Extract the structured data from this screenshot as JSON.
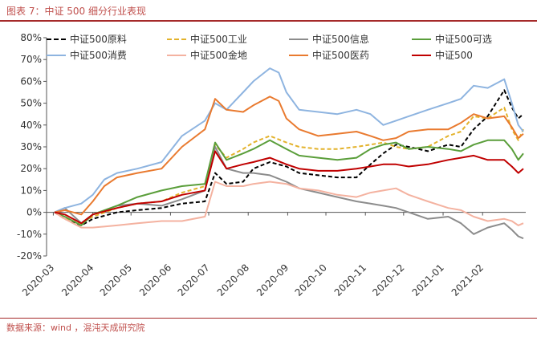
{
  "figure": {
    "title": "图表 7：中证 500 细分行业表现",
    "source": "数据来源：wind ，混沌天成研究院"
  },
  "chart_data": {
    "type": "line",
    "ylim": [
      -20,
      80
    ],
    "yticks": [
      "80%",
      "70%",
      "60%",
      "50%",
      "40%",
      "30%",
      "20%",
      "10%",
      "0%",
      "-10%",
      "-20%"
    ],
    "xticks": [
      "2020-03",
      "2020-04",
      "2020-05",
      "2020-06",
      "2020-07",
      "2020-08",
      "2020-09",
      "2020-10",
      "2020-11",
      "2020-12",
      "2021-01",
      "2021-02"
    ],
    "x_start": "2020-03-02",
    "legend": "top",
    "grid": false,
    "series": [
      {
        "name": "中证500原料",
        "color": "#000000",
        "dash": "5,3",
        "width": 2,
        "points": [
          [
            "2020-03-02",
            0
          ],
          [
            "2020-03-10",
            -3
          ],
          [
            "2020-03-23",
            -6
          ],
          [
            "2020-04-01",
            -3
          ],
          [
            "2020-04-20",
            0
          ],
          [
            "2020-05-06",
            1
          ],
          [
            "2020-05-25",
            2
          ],
          [
            "2020-06-10",
            4
          ],
          [
            "2020-06-28",
            5
          ],
          [
            "2020-07-06",
            18
          ],
          [
            "2020-07-15",
            13
          ],
          [
            "2020-07-28",
            14
          ],
          [
            "2020-08-05",
            20
          ],
          [
            "2020-08-18",
            23
          ],
          [
            "2020-08-31",
            21
          ],
          [
            "2020-09-10",
            18
          ],
          [
            "2020-09-25",
            17
          ],
          [
            "2020-10-10",
            16
          ],
          [
            "2020-10-25",
            16
          ],
          [
            "2020-11-05",
            22
          ],
          [
            "2020-11-15",
            27
          ],
          [
            "2020-11-25",
            31
          ],
          [
            "2020-12-05",
            30
          ],
          [
            "2020-12-20",
            28
          ],
          [
            "2021-01-05",
            31
          ],
          [
            "2021-01-15",
            30
          ],
          [
            "2021-01-25",
            38
          ],
          [
            "2021-02-05",
            44
          ],
          [
            "2021-02-18",
            56
          ],
          [
            "2021-02-24",
            48
          ],
          [
            "2021-03-01",
            43
          ],
          [
            "2021-03-05",
            45
          ]
        ]
      },
      {
        "name": "中证500工业",
        "color": "#e3b22b",
        "dash": "5,3",
        "width": 2,
        "points": [
          [
            "2020-03-02",
            0
          ],
          [
            "2020-03-10",
            -3
          ],
          [
            "2020-03-23",
            -5
          ],
          [
            "2020-04-01",
            -2
          ],
          [
            "2020-04-20",
            2
          ],
          [
            "2020-05-06",
            4
          ],
          [
            "2020-05-25",
            5
          ],
          [
            "2020-06-10",
            9
          ],
          [
            "2020-06-28",
            12
          ],
          [
            "2020-07-06",
            31
          ],
          [
            "2020-07-15",
            25
          ],
          [
            "2020-07-28",
            29
          ],
          [
            "2020-08-05",
            32
          ],
          [
            "2020-08-18",
            35
          ],
          [
            "2020-08-31",
            32
          ],
          [
            "2020-09-10",
            30
          ],
          [
            "2020-09-25",
            29
          ],
          [
            "2020-10-10",
            29
          ],
          [
            "2020-10-25",
            30
          ],
          [
            "2020-11-05",
            31
          ],
          [
            "2020-11-15",
            32
          ],
          [
            "2020-11-25",
            30
          ],
          [
            "2020-12-05",
            29
          ],
          [
            "2020-12-20",
            30
          ],
          [
            "2021-01-05",
            35
          ],
          [
            "2021-01-15",
            37
          ],
          [
            "2021-01-25",
            44
          ],
          [
            "2021-02-05",
            43
          ],
          [
            "2021-02-18",
            48
          ],
          [
            "2021-02-24",
            38
          ],
          [
            "2021-03-01",
            33
          ],
          [
            "2021-03-05",
            38
          ]
        ]
      },
      {
        "name": "中证500信息",
        "color": "#8c8c8c",
        "dash": "",
        "width": 2,
        "points": [
          [
            "2020-03-02",
            0
          ],
          [
            "2020-03-10",
            2
          ],
          [
            "2020-03-23",
            -5
          ],
          [
            "2020-04-01",
            -1
          ],
          [
            "2020-04-20",
            3
          ],
          [
            "2020-05-06",
            4
          ],
          [
            "2020-05-25",
            3
          ],
          [
            "2020-06-10",
            6
          ],
          [
            "2020-06-28",
            10
          ],
          [
            "2020-07-06",
            30
          ],
          [
            "2020-07-15",
            20
          ],
          [
            "2020-07-28",
            18
          ],
          [
            "2020-08-05",
            18
          ],
          [
            "2020-08-18",
            17
          ],
          [
            "2020-08-31",
            14
          ],
          [
            "2020-09-10",
            11
          ],
          [
            "2020-09-25",
            9
          ],
          [
            "2020-10-10",
            7
          ],
          [
            "2020-10-25",
            5
          ],
          [
            "2020-11-05",
            4
          ],
          [
            "2020-11-15",
            3
          ],
          [
            "2020-11-25",
            2
          ],
          [
            "2020-12-05",
            0
          ],
          [
            "2020-12-20",
            -3
          ],
          [
            "2021-01-05",
            -2
          ],
          [
            "2021-01-15",
            -5
          ],
          [
            "2021-01-25",
            -10
          ],
          [
            "2021-02-05",
            -7
          ],
          [
            "2021-02-18",
            -5
          ],
          [
            "2021-02-24",
            -8
          ],
          [
            "2021-03-01",
            -11
          ],
          [
            "2021-03-05",
            -12
          ]
        ]
      },
      {
        "name": "中证500可选",
        "color": "#5a9e3a",
        "dash": "",
        "width": 2,
        "points": [
          [
            "2020-03-02",
            0
          ],
          [
            "2020-03-10",
            -2
          ],
          [
            "2020-03-23",
            -6
          ],
          [
            "2020-04-01",
            -1
          ],
          [
            "2020-04-20",
            3
          ],
          [
            "2020-05-06",
            7
          ],
          [
            "2020-05-25",
            10
          ],
          [
            "2020-06-10",
            12
          ],
          [
            "2020-06-28",
            13
          ],
          [
            "2020-07-06",
            32
          ],
          [
            "2020-07-15",
            24
          ],
          [
            "2020-07-28",
            27
          ],
          [
            "2020-08-05",
            29
          ],
          [
            "2020-08-18",
            33
          ],
          [
            "2020-08-31",
            29
          ],
          [
            "2020-09-10",
            26
          ],
          [
            "2020-09-25",
            25
          ],
          [
            "2020-10-10",
            24
          ],
          [
            "2020-10-25",
            25
          ],
          [
            "2020-11-05",
            29
          ],
          [
            "2020-11-15",
            31
          ],
          [
            "2020-11-25",
            32
          ],
          [
            "2020-12-05",
            29
          ],
          [
            "2020-12-20",
            30
          ],
          [
            "2021-01-05",
            29
          ],
          [
            "2021-01-15",
            28
          ],
          [
            "2021-01-25",
            31
          ],
          [
            "2021-02-05",
            33
          ],
          [
            "2021-02-18",
            33
          ],
          [
            "2021-02-24",
            29
          ],
          [
            "2021-03-01",
            24
          ],
          [
            "2021-03-05",
            27
          ]
        ]
      },
      {
        "name": "中证500消费",
        "color": "#8eb4e0",
        "dash": "",
        "width": 2,
        "points": [
          [
            "2020-03-02",
            0
          ],
          [
            "2020-03-10",
            2
          ],
          [
            "2020-03-23",
            4
          ],
          [
            "2020-04-01",
            8
          ],
          [
            "2020-04-10",
            15
          ],
          [
            "2020-04-20",
            18
          ],
          [
            "2020-05-06",
            20
          ],
          [
            "2020-05-25",
            23
          ],
          [
            "2020-06-10",
            35
          ],
          [
            "2020-06-28",
            42
          ],
          [
            "2020-07-06",
            50
          ],
          [
            "2020-07-15",
            47
          ],
          [
            "2020-07-28",
            55
          ],
          [
            "2020-08-05",
            60
          ],
          [
            "2020-08-18",
            66
          ],
          [
            "2020-08-25",
            64
          ],
          [
            "2020-08-31",
            55
          ],
          [
            "2020-09-10",
            47
          ],
          [
            "2020-09-25",
            46
          ],
          [
            "2020-10-10",
            45
          ],
          [
            "2020-10-25",
            47
          ],
          [
            "2020-11-05",
            45
          ],
          [
            "2020-11-15",
            40
          ],
          [
            "2020-11-25",
            42
          ],
          [
            "2020-12-05",
            44
          ],
          [
            "2020-12-20",
            47
          ],
          [
            "2021-01-05",
            50
          ],
          [
            "2021-01-15",
            52
          ],
          [
            "2021-01-25",
            58
          ],
          [
            "2021-02-05",
            57
          ],
          [
            "2021-02-18",
            61
          ],
          [
            "2021-02-24",
            50
          ],
          [
            "2021-03-01",
            40
          ],
          [
            "2021-03-05",
            37
          ]
        ]
      },
      {
        "name": "中证500金地",
        "color": "#f4b2a0",
        "dash": "",
        "width": 2,
        "points": [
          [
            "2020-03-02",
            0
          ],
          [
            "2020-03-10",
            -3
          ],
          [
            "2020-03-23",
            -7
          ],
          [
            "2020-04-01",
            -7
          ],
          [
            "2020-04-20",
            -6
          ],
          [
            "2020-05-06",
            -5
          ],
          [
            "2020-05-25",
            -4
          ],
          [
            "2020-06-10",
            -4
          ],
          [
            "2020-06-28",
            -2
          ],
          [
            "2020-07-06",
            14
          ],
          [
            "2020-07-15",
            12
          ],
          [
            "2020-07-28",
            12
          ],
          [
            "2020-08-05",
            13
          ],
          [
            "2020-08-18",
            14
          ],
          [
            "2020-08-31",
            13
          ],
          [
            "2020-09-10",
            11
          ],
          [
            "2020-09-25",
            10
          ],
          [
            "2020-10-10",
            8
          ],
          [
            "2020-10-25",
            7
          ],
          [
            "2020-11-05",
            9
          ],
          [
            "2020-11-15",
            10
          ],
          [
            "2020-11-25",
            11
          ],
          [
            "2020-12-05",
            8
          ],
          [
            "2020-12-20",
            5
          ],
          [
            "2021-01-05",
            2
          ],
          [
            "2021-01-15",
            1
          ],
          [
            "2021-01-25",
            -2
          ],
          [
            "2021-02-05",
            -4
          ],
          [
            "2021-02-18",
            -3
          ],
          [
            "2021-02-24",
            -4
          ],
          [
            "2021-03-01",
            -6
          ],
          [
            "2021-03-05",
            -5
          ]
        ]
      },
      {
        "name": "中证500医药",
        "color": "#e97a2f",
        "dash": "",
        "width": 2,
        "points": [
          [
            "2020-03-02",
            0
          ],
          [
            "2020-03-10",
            1
          ],
          [
            "2020-03-23",
            -1
          ],
          [
            "2020-04-01",
            5
          ],
          [
            "2020-04-10",
            12
          ],
          [
            "2020-04-20",
            16
          ],
          [
            "2020-05-06",
            18
          ],
          [
            "2020-05-25",
            20
          ],
          [
            "2020-06-10",
            30
          ],
          [
            "2020-06-28",
            38
          ],
          [
            "2020-07-06",
            52
          ],
          [
            "2020-07-15",
            47
          ],
          [
            "2020-07-28",
            46
          ],
          [
            "2020-08-05",
            49
          ],
          [
            "2020-08-18",
            53
          ],
          [
            "2020-08-25",
            51
          ],
          [
            "2020-08-31",
            43
          ],
          [
            "2020-09-10",
            38
          ],
          [
            "2020-09-25",
            35
          ],
          [
            "2020-10-10",
            36
          ],
          [
            "2020-10-25",
            37
          ],
          [
            "2020-11-05",
            35
          ],
          [
            "2020-11-15",
            33
          ],
          [
            "2020-11-25",
            34
          ],
          [
            "2020-12-05",
            37
          ],
          [
            "2020-12-20",
            38
          ],
          [
            "2021-01-05",
            38
          ],
          [
            "2021-01-15",
            41
          ],
          [
            "2021-01-25",
            45
          ],
          [
            "2021-02-05",
            43
          ],
          [
            "2021-02-18",
            44
          ],
          [
            "2021-02-24",
            39
          ],
          [
            "2021-03-01",
            34
          ],
          [
            "2021-03-05",
            36
          ]
        ]
      },
      {
        "name": "中证500",
        "color": "#c00000",
        "dash": "",
        "width": 2,
        "points": [
          [
            "2020-03-02",
            0
          ],
          [
            "2020-03-10",
            -1
          ],
          [
            "2020-03-23",
            -5
          ],
          [
            "2020-04-01",
            -1
          ],
          [
            "2020-04-20",
            2
          ],
          [
            "2020-05-06",
            4
          ],
          [
            "2020-05-25",
            5
          ],
          [
            "2020-06-10",
            8
          ],
          [
            "2020-06-28",
            10
          ],
          [
            "2020-07-06",
            28
          ],
          [
            "2020-07-15",
            20
          ],
          [
            "2020-07-28",
            22
          ],
          [
            "2020-08-05",
            23
          ],
          [
            "2020-08-18",
            25
          ],
          [
            "2020-08-31",
            22
          ],
          [
            "2020-09-10",
            20
          ],
          [
            "2020-09-25",
            19
          ],
          [
            "2020-10-10",
            19
          ],
          [
            "2020-10-25",
            20
          ],
          [
            "2020-11-05",
            21
          ],
          [
            "2020-11-15",
            22
          ],
          [
            "2020-11-25",
            22
          ],
          [
            "2020-12-05",
            21
          ],
          [
            "2020-12-20",
            22
          ],
          [
            "2021-01-05",
            24
          ],
          [
            "2021-01-15",
            25
          ],
          [
            "2021-01-25",
            26
          ],
          [
            "2021-02-05",
            24
          ],
          [
            "2021-02-18",
            24
          ],
          [
            "2021-02-24",
            21
          ],
          [
            "2021-03-01",
            18
          ],
          [
            "2021-03-05",
            20
          ]
        ]
      }
    ]
  }
}
